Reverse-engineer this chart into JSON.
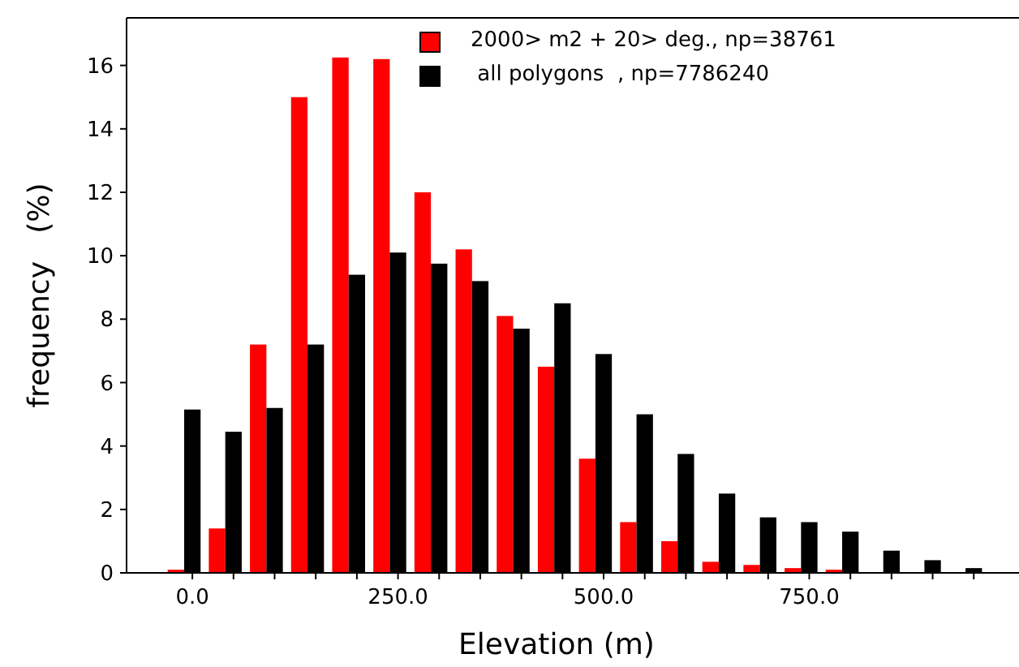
{
  "chart_data": {
    "type": "bar",
    "xlabel": "Elevation (m)",
    "ylabel": "frequency   (%)",
    "x": [
      0,
      50,
      100,
      150,
      200,
      250,
      300,
      350,
      400,
      450,
      500,
      550,
      600,
      650,
      700,
      750,
      800,
      850,
      900,
      950
    ],
    "series": [
      {
        "name": "2000> m2 + 20> deg., np=38761",
        "color": "#ff0000",
        "values": [
          0.1,
          1.4,
          7.2,
          15.0,
          16.25,
          16.2,
          12.0,
          10.2,
          8.1,
          6.5,
          3.6,
          1.6,
          1.0,
          0.35,
          0.25,
          0.15,
          0.1,
          0,
          0,
          0
        ]
      },
      {
        "name": " all polygons  , np=7786240",
        "color": "#000000",
        "values": [
          5.15,
          4.45,
          5.2,
          7.2,
          9.4,
          10.1,
          9.75,
          9.2,
          7.7,
          8.5,
          6.9,
          5.0,
          3.75,
          2.5,
          1.75,
          1.6,
          1.3,
          0.7,
          0.4,
          0.15
        ]
      }
    ],
    "xlim": [
      -80,
      1005
    ],
    "ylim": [
      0,
      17.5
    ],
    "xticks": [
      {
        "value": 0,
        "label": "0.0"
      },
      {
        "value": 50,
        "label": null
      },
      {
        "value": 100,
        "label": null
      },
      {
        "value": 150,
        "label": null
      },
      {
        "value": 200,
        "label": null
      },
      {
        "value": 250,
        "label": "250.0"
      },
      {
        "value": 300,
        "label": null
      },
      {
        "value": 350,
        "label": null
      },
      {
        "value": 400,
        "label": null
      },
      {
        "value": 450,
        "label": null
      },
      {
        "value": 500,
        "label": "500.0"
      },
      {
        "value": 550,
        "label": null
      },
      {
        "value": 600,
        "label": null
      },
      {
        "value": 650,
        "label": null
      },
      {
        "value": 700,
        "label": null
      },
      {
        "value": 750,
        "label": "750.0"
      },
      {
        "value": 800,
        "label": null
      },
      {
        "value": 850,
        "label": null
      },
      {
        "value": 900,
        "label": null
      },
      {
        "value": 950,
        "label": null
      }
    ],
    "yticks": [
      0,
      2,
      4,
      6,
      8,
      10,
      12,
      14,
      16
    ],
    "legend": "top",
    "grid": false
  }
}
